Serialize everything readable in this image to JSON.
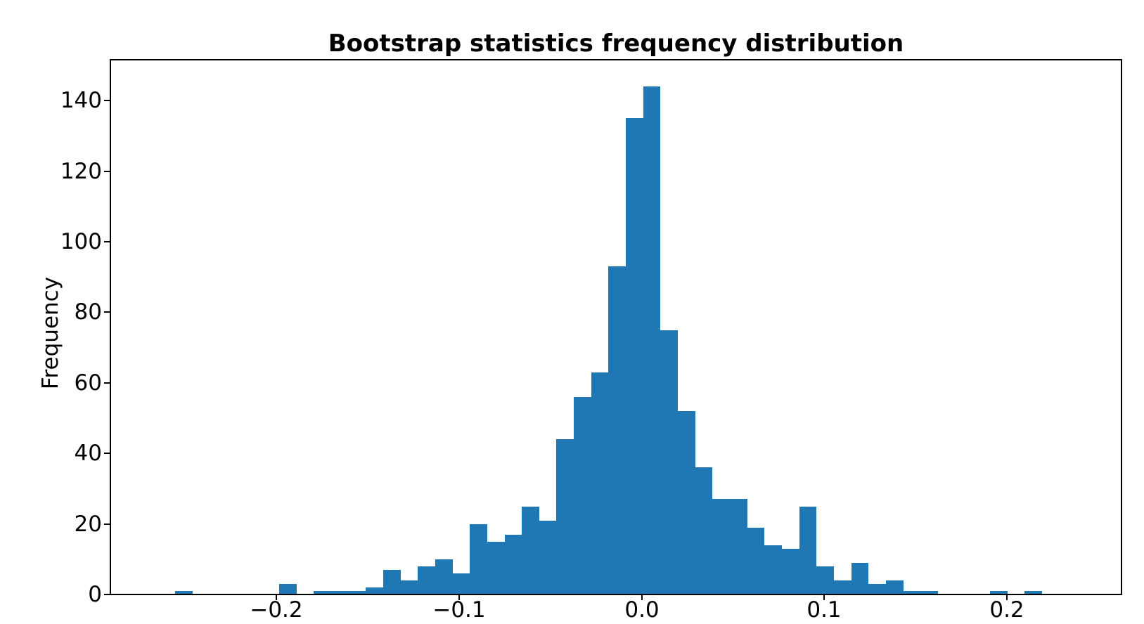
{
  "chart_data": {
    "type": "bar",
    "subtype": "histogram",
    "title": "Bootstrap statistics frequency distribution",
    "xlabel": "",
    "ylabel": "Frequency",
    "bin_start": -0.2554,
    "bin_width": 0.009492,
    "counts": [
      1,
      0,
      0,
      0,
      0,
      0,
      3,
      0,
      1,
      1,
      1,
      2,
      7,
      4,
      8,
      10,
      6,
      20,
      15,
      17,
      25,
      21,
      44,
      56,
      63,
      93,
      135,
      144,
      75,
      52,
      36,
      27,
      27,
      19,
      14,
      13,
      25,
      8,
      4,
      9,
      3,
      4,
      1,
      1,
      0,
      0,
      0,
      1,
      0,
      1
    ],
    "x_ticks": [
      -0.2,
      -0.1,
      0.0,
      0.1,
      0.2
    ],
    "x_tick_labels": [
      "−0.2",
      "−0.1",
      "0.0",
      "0.1",
      "0.2"
    ],
    "y_ticks": [
      0,
      20,
      40,
      60,
      80,
      100,
      120,
      140
    ],
    "y_tick_labels": [
      "0",
      "20",
      "40",
      "60",
      "80",
      "100",
      "120",
      "140"
    ],
    "xlim": [
      -0.2908,
      0.2627
    ],
    "ylim": [
      0,
      151.6
    ],
    "grid": false,
    "legend": null,
    "bar_color": "#1f77b4",
    "spine_color": "#000000",
    "background_color": "#ffffff"
  }
}
